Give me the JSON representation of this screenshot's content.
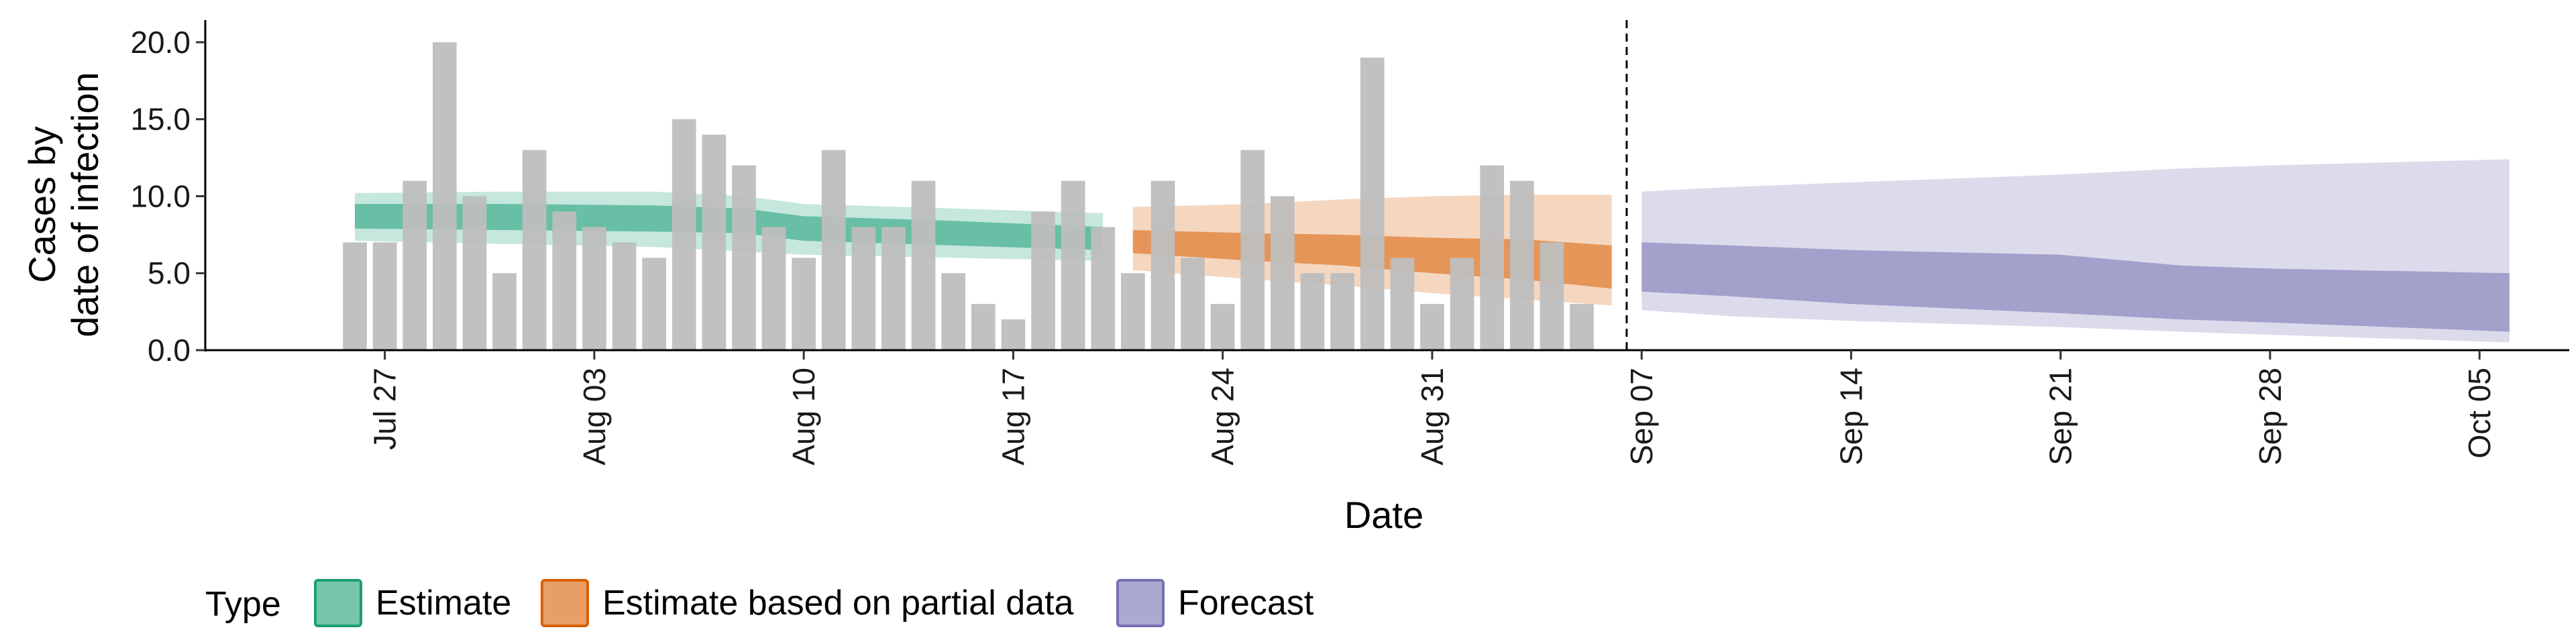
{
  "chart_data": {
    "type": "bar",
    "title": "",
    "xlabel": "Date",
    "ylabel": [
      "Cases by",
      "date of infection"
    ],
    "ylim": [
      0,
      21
    ],
    "yticks": [
      0,
      5,
      10,
      15,
      20
    ],
    "ytick_labels": [
      "0.0",
      "5.0",
      "10.0",
      "15.0",
      "20.0"
    ],
    "xlim": [
      "2020-07-21",
      "2020-10-08"
    ],
    "xticks": [
      {
        "date": "2020-07-27",
        "label": "Jul 27"
      },
      {
        "date": "2020-08-03",
        "label": "Aug 03"
      },
      {
        "date": "2020-08-10",
        "label": "Aug 10"
      },
      {
        "date": "2020-08-17",
        "label": "Aug 17"
      },
      {
        "date": "2020-08-24",
        "label": "Aug 24"
      },
      {
        "date": "2020-08-31",
        "label": "Aug 31"
      },
      {
        "date": "2020-09-07",
        "label": "Sep 07"
      },
      {
        "date": "2020-09-14",
        "label": "Sep 14"
      },
      {
        "date": "2020-09-21",
        "label": "Sep 21"
      },
      {
        "date": "2020-09-28",
        "label": "Sep 28"
      },
      {
        "date": "2020-10-05",
        "label": "Oct 05"
      }
    ],
    "cutoff_date": "2020-09-06",
    "bars": {
      "start_date": "2020-07-26",
      "values": [
        7,
        7,
        11,
        20,
        10,
        5,
        13,
        9,
        8,
        7,
        6,
        15,
        14,
        12,
        8,
        6,
        13,
        8,
        8,
        11,
        5,
        3,
        2,
        9,
        11,
        8,
        5,
        11,
        6,
        3,
        13,
        10,
        5,
        5,
        19,
        6,
        3,
        6,
        12,
        11,
        7,
        3
      ],
      "color": "#bebebe"
    },
    "legend": {
      "title": "Type",
      "position": "bottom",
      "items": [
        {
          "label": "Estimate",
          "color": "#1b9e77"
        },
        {
          "label": "Estimate based on partial data",
          "color": "#d95f02"
        },
        {
          "label": "Forecast",
          "color": "#7570b3"
        }
      ]
    },
    "series": [
      {
        "name": "Estimate",
        "color": "#1b9e77",
        "x": [
          "2020-07-26",
          "2020-07-31",
          "2020-08-05",
          "2020-08-08",
          "2020-08-10",
          "2020-08-15",
          "2020-08-20"
        ],
        "inner_lower": [
          7.9,
          7.8,
          7.7,
          7.6,
          7.1,
          6.8,
          6.5
        ],
        "inner_upper": [
          9.5,
          9.5,
          9.4,
          9.2,
          8.7,
          8.4,
          8.0
        ],
        "outer_lower": [
          7.1,
          6.9,
          6.7,
          6.4,
          6.2,
          6.0,
          5.8
        ],
        "outer_upper": [
          10.2,
          10.3,
          10.3,
          10.0,
          9.5,
          9.2,
          8.9
        ]
      },
      {
        "name": "Estimate based on partial data",
        "color": "#d95f02",
        "x": [
          "2020-08-21",
          "2020-08-25",
          "2020-08-28",
          "2020-08-31",
          "2020-09-03",
          "2020-09-06"
        ],
        "inner_lower": [
          6.3,
          5.8,
          5.5,
          5.0,
          4.6,
          4.0
        ],
        "inner_upper": [
          7.8,
          7.6,
          7.5,
          7.3,
          7.2,
          6.8
        ],
        "outer_lower": [
          5.2,
          4.6,
          4.2,
          3.7,
          3.3,
          2.9
        ],
        "outer_upper": [
          9.3,
          9.5,
          9.8,
          10.0,
          10.1,
          10.1
        ]
      },
      {
        "name": "Forecast",
        "color": "#7570b3",
        "x": [
          "2020-09-07",
          "2020-09-10",
          "2020-09-14",
          "2020-09-21",
          "2020-09-25",
          "2020-09-28",
          "2020-10-06"
        ],
        "inner_lower": [
          3.8,
          3.5,
          3.0,
          2.4,
          2.0,
          1.8,
          1.2
        ],
        "inner_upper": [
          7.0,
          6.8,
          6.5,
          6.2,
          5.5,
          5.3,
          5.0
        ],
        "outer_lower": [
          2.6,
          2.2,
          1.9,
          1.5,
          1.2,
          1.0,
          0.5
        ],
        "outer_upper": [
          10.3,
          10.6,
          10.9,
          11.4,
          11.8,
          12.0,
          12.4
        ]
      }
    ]
  }
}
